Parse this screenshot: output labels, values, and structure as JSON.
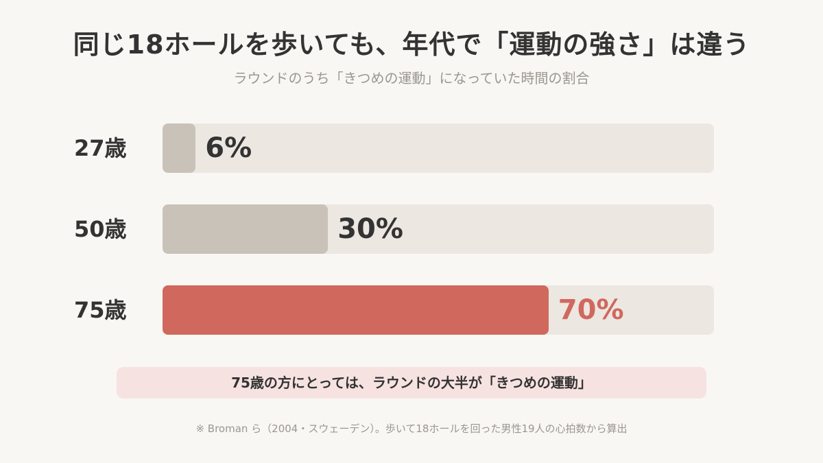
{
  "header": {
    "title": "同じ18ホールを歩いても、年代で「運動の強さ」は違う",
    "subtitle": "ラウンドのうち「きつめの運動」になっていた時間の割合"
  },
  "chart_data": {
    "type": "bar",
    "orientation": "horizontal",
    "categories": [
      "27歳",
      "50歳",
      "75歳"
    ],
    "values": [
      6,
      30,
      70
    ],
    "value_labels": [
      "6%",
      "30%",
      "70%"
    ],
    "xlim": [
      0,
      100
    ],
    "highlight_index": 2,
    "colors": {
      "bar": "#c9c2b8",
      "highlight": "#d0685e",
      "track": "#ece7e1"
    },
    "grid": false
  },
  "callout": {
    "text": "75歳の方にとっては、ラウンドの大半が「きつめの運動」"
  },
  "footnote": {
    "text": "※ Broman ら（2004・スウェーデン）。歩いて18ホールを回った男性19人の心拍数から算出"
  }
}
